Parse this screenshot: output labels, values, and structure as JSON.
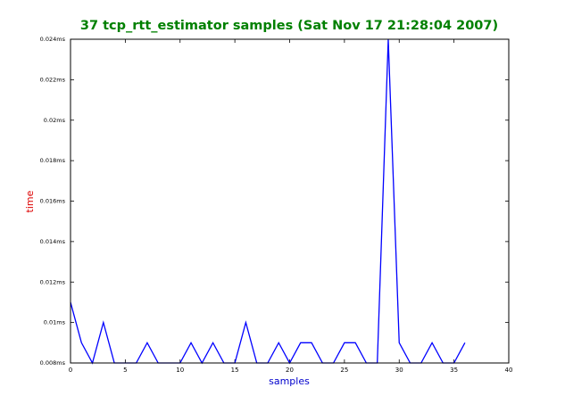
{
  "chart_data": {
    "type": "line",
    "title": "37 tcp_rtt_estimator samples (Sat Nov 17 21:28:04 2007)",
    "x_label": "samples",
    "y_label": "time",
    "x": [
      0,
      1,
      2,
      3,
      4,
      5,
      6,
      7,
      8,
      9,
      10,
      11,
      12,
      13,
      14,
      15,
      16,
      17,
      18,
      19,
      20,
      21,
      22,
      23,
      24,
      25,
      26,
      27,
      28,
      29,
      30,
      31,
      32,
      33,
      34,
      35,
      36
    ],
    "values": [
      0.011,
      0.009,
      0.008,
      0.01,
      0.008,
      0.008,
      0.008,
      0.009,
      0.008,
      0.008,
      0.008,
      0.009,
      0.008,
      0.009,
      0.008,
      0.008,
      0.01,
      0.008,
      0.008,
      0.009,
      0.008,
      0.009,
      0.009,
      0.008,
      0.008,
      0.009,
      0.009,
      0.008,
      0.008,
      0.024,
      0.009,
      0.008,
      0.008,
      0.009,
      0.008,
      0.008,
      0.009
    ],
    "color": "#0000ff",
    "xlim": [
      0,
      40
    ],
    "xticks": [
      0,
      5,
      10,
      15,
      20,
      25,
      30,
      35,
      40
    ],
    "ylim": [
      0.008,
      0.024
    ],
    "yticks": [
      {
        "value": 0.008,
        "label": "0.008ms"
      },
      {
        "value": 0.01,
        "label": "0.01ms"
      },
      {
        "value": 0.012,
        "label": "0.012ms"
      },
      {
        "value": 0.014,
        "label": "0.014ms"
      },
      {
        "value": 0.016,
        "label": "0.016ms"
      },
      {
        "value": 0.018,
        "label": "0.018ms"
      },
      {
        "value": 0.02,
        "label": "0.02ms"
      },
      {
        "value": 0.022,
        "label": "0.022ms"
      },
      {
        "value": 0.024,
        "label": "0.024ms"
      }
    ],
    "grid": false
  }
}
